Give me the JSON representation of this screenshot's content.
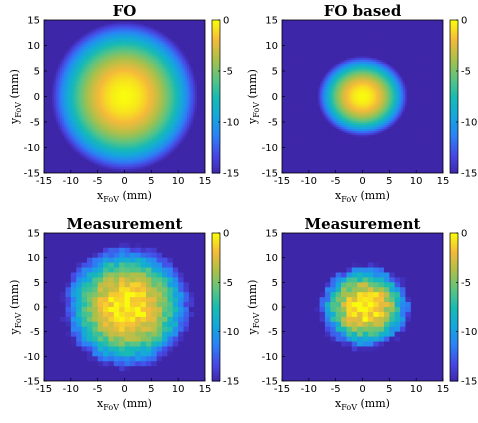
{
  "chart_data": [
    {
      "type": "heatmap",
      "title": "FO",
      "xlabel_main": "x",
      "xlabel_sub": "FoV",
      "xlabel_unit": "(mm)",
      "ylabel_main": "y",
      "ylabel_sub": "FoV",
      "ylabel_unit": "(mm)",
      "xlim": [
        -15,
        15
      ],
      "ylim": [
        -15,
        15
      ],
      "xticks": [
        -15,
        -10,
        -5,
        0,
        5,
        10,
        15
      ],
      "yticks": [
        15,
        10,
        5,
        0,
        -5,
        -10,
        -15
      ],
      "clim": [
        -15,
        0
      ],
      "colorbar_ticks": [
        0,
        -5,
        -10,
        -15
      ],
      "colormap": "parula",
      "model": {
        "center": [
          0,
          0
        ],
        "sigma_x": 5.2,
        "sigma_y": 5.6,
        "noise": 0,
        "grid": 0
      }
    },
    {
      "type": "heatmap",
      "title": "FO based",
      "xlabel_main": "x",
      "xlabel_sub": "FoV",
      "xlabel_unit": "(mm)",
      "ylabel_main": "y",
      "ylabel_sub": "FoV",
      "ylabel_unit": "(mm)",
      "xlim": [
        -15,
        15
      ],
      "ylim": [
        -15,
        15
      ],
      "xticks": [
        -15,
        -10,
        -5,
        0,
        5,
        10,
        15
      ],
      "yticks": [
        15,
        10,
        5,
        0,
        -5,
        -10,
        -15
      ],
      "clim": [
        -15,
        0
      ],
      "colorbar_ticks": [
        0,
        -5,
        -10,
        -15
      ],
      "colormap": "parula",
      "model": {
        "center": [
          0,
          0
        ],
        "sigma_x": 3.2,
        "sigma_y": 3.0,
        "noise": 0,
        "grid": 0
      }
    },
    {
      "type": "heatmap",
      "title": "Measurement",
      "xlabel_main": "x",
      "xlabel_sub": "FoV",
      "xlabel_unit": "(mm)",
      "ylabel_main": "y",
      "ylabel_sub": "FoV",
      "ylabel_unit": "(mm)",
      "xlim": [
        -15,
        15
      ],
      "ylim": [
        -15,
        15
      ],
      "xticks": [
        -15,
        -10,
        -5,
        0,
        5,
        10,
        15
      ],
      "yticks": [
        15,
        10,
        5,
        0,
        -5,
        -10,
        -15
      ],
      "clim": [
        -15,
        0
      ],
      "colorbar_ticks": [
        0,
        -5,
        -10,
        -15
      ],
      "colormap": "parula",
      "model": {
        "center": [
          0.5,
          0
        ],
        "sigma_x": 4.6,
        "sigma_y": 4.8,
        "noise": 1.2,
        "grid": 30
      }
    },
    {
      "type": "heatmap",
      "title": "Measurement",
      "xlabel_main": "x",
      "xlabel_sub": "FoV",
      "xlabel_unit": "(mm)",
      "ylabel_main": "y",
      "ylabel_sub": "FoV",
      "ylabel_unit": "(mm)",
      "xlim": [
        -15,
        15
      ],
      "ylim": [
        -15,
        15
      ],
      "xticks": [
        -15,
        -10,
        -5,
        0,
        5,
        10,
        15
      ],
      "yticks": [
        15,
        10,
        5,
        0,
        -5,
        -10,
        -15
      ],
      "clim": [
        -15,
        0
      ],
      "colorbar_ticks": [
        0,
        -5,
        -10,
        -15
      ],
      "colormap": "parula",
      "model": {
        "center": [
          0.5,
          0
        ],
        "sigma_x": 3.3,
        "sigma_y": 3.3,
        "noise": 1.6,
        "grid": 30
      }
    }
  ]
}
